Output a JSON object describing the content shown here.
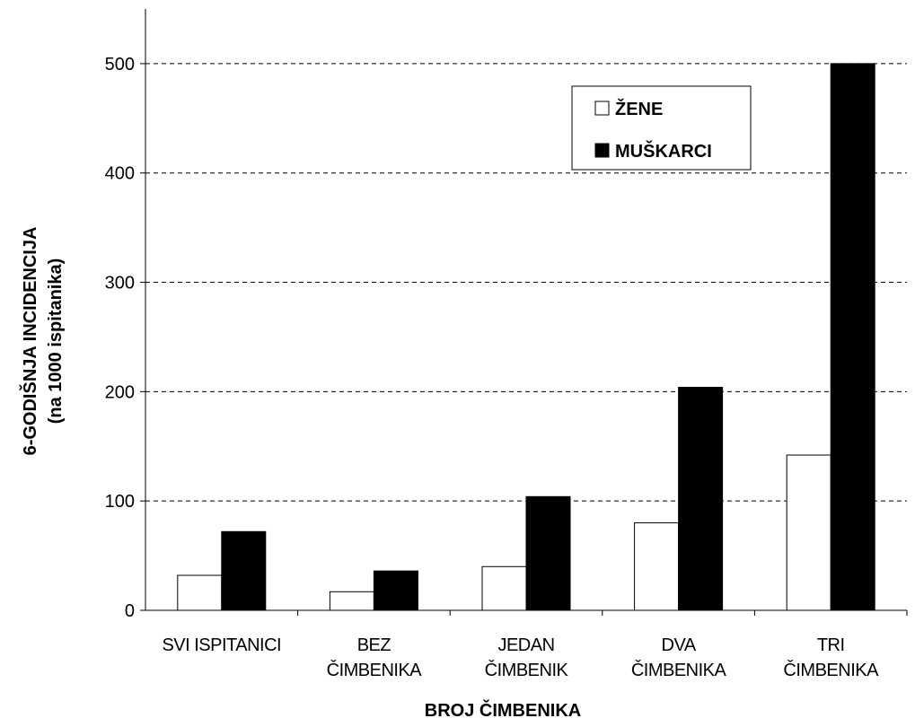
{
  "chart_data": {
    "type": "bar",
    "categories": [
      [
        "SVI ISPITANICI"
      ],
      [
        "BEZ",
        "ČIMBENIKA"
      ],
      [
        "JEDAN",
        "ČIMBENIK"
      ],
      [
        "DVA",
        "ČIMBENIKA"
      ],
      [
        "TRI",
        "ČIMBENIKA"
      ]
    ],
    "series": [
      {
        "name": "ŽENE",
        "values": [
          32,
          17,
          40,
          80,
          142
        ],
        "color": "#ffffff"
      },
      {
        "name": "MUŠKARCI",
        "values": [
          72,
          36,
          104,
          204,
          500
        ],
        "color": "#000000"
      }
    ],
    "xlabel": "BROJ ČIMBENIKA",
    "ylabel": [
      "6-GODIŠNJA INCIDENCIJA",
      "(na 1000 ispitanika)"
    ],
    "ylim": [
      0,
      550
    ],
    "yticks": [
      0,
      100,
      200,
      300,
      400,
      500
    ],
    "grid": true,
    "legend": "top-right"
  }
}
